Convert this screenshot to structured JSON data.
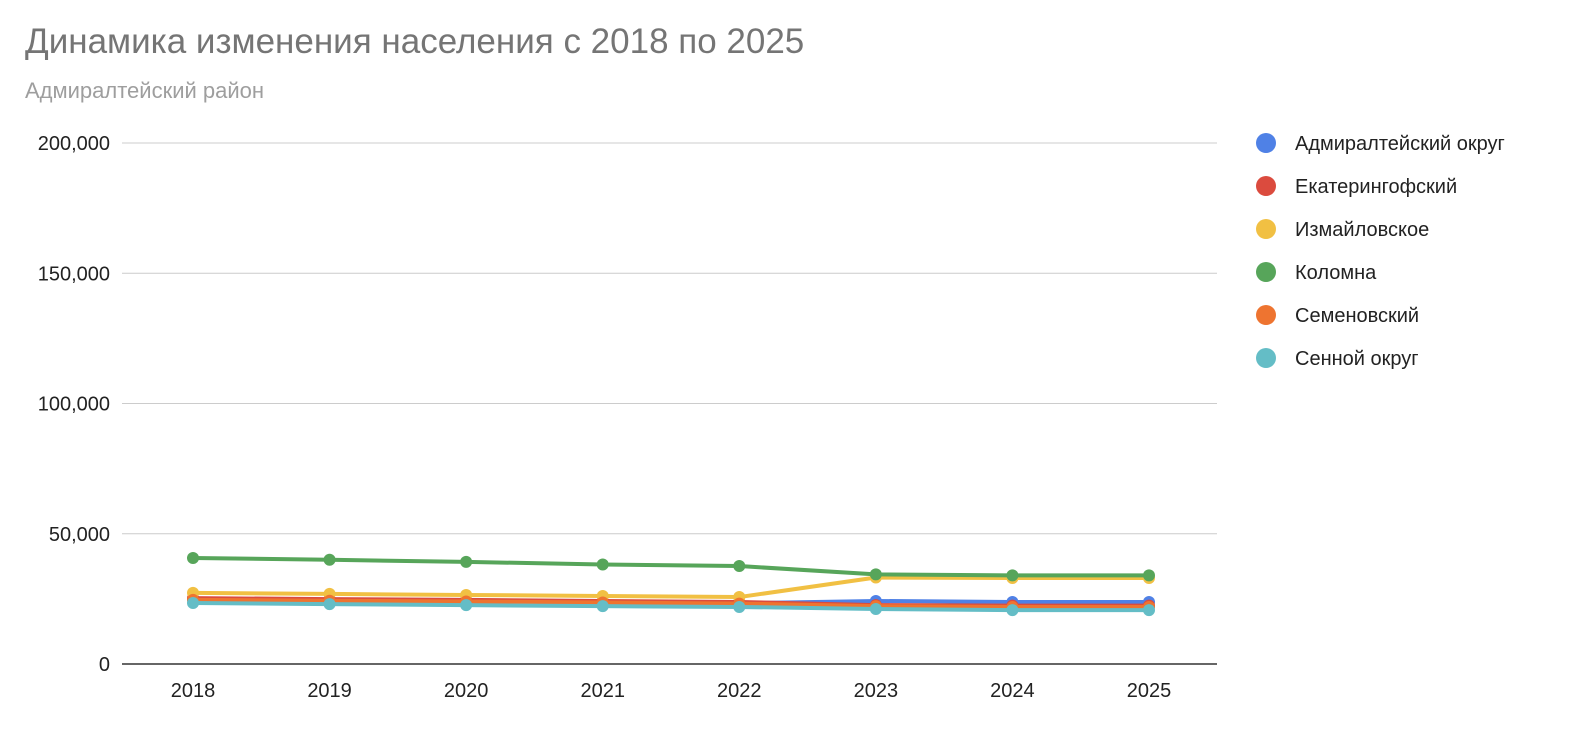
{
  "chart_data": {
    "type": "line",
    "title": "Динамика изменения населения с 2018 по 2025",
    "subtitle": "Адмиралтейский район",
    "xlabel": "",
    "ylabel": "",
    "categories": [
      "2018",
      "2019",
      "2020",
      "2021",
      "2022",
      "2023",
      "2024",
      "2025"
    ],
    "ylim": [
      0,
      200000
    ],
    "yticks": [
      "0",
      "50,000",
      "100,000",
      "150,000",
      "200,000"
    ],
    "grid": true,
    "legend": "right",
    "series": [
      {
        "name": "Адмиралтейский округ",
        "color": "#4f81e6",
        "values": [
          24800,
          24500,
          24200,
          23900,
          23300,
          24200,
          23800,
          23800
        ]
      },
      {
        "name": "Екатерингофский",
        "color": "#db4b3e",
        "values": [
          25300,
          24900,
          24600,
          24200,
          23800,
          22600,
          22400,
          22400
        ]
      },
      {
        "name": "Измайловское",
        "color": "#f1c043",
        "values": [
          27300,
          26900,
          26500,
          26100,
          25700,
          33200,
          33000,
          33000
        ]
      },
      {
        "name": "Коломна",
        "color": "#57a55a",
        "values": [
          40700,
          40000,
          39200,
          38200,
          37600,
          34400,
          34000,
          34000
        ]
      },
      {
        "name": "Семеновский",
        "color": "#ee7430",
        "values": [
          24600,
          24300,
          24000,
          23600,
          23200,
          22200,
          21900,
          21900
        ]
      },
      {
        "name": "Сенной округ",
        "color": "#64bdc6",
        "values": [
          23400,
          23000,
          22600,
          22200,
          21900,
          21100,
          20700,
          20700
        ]
      }
    ]
  }
}
